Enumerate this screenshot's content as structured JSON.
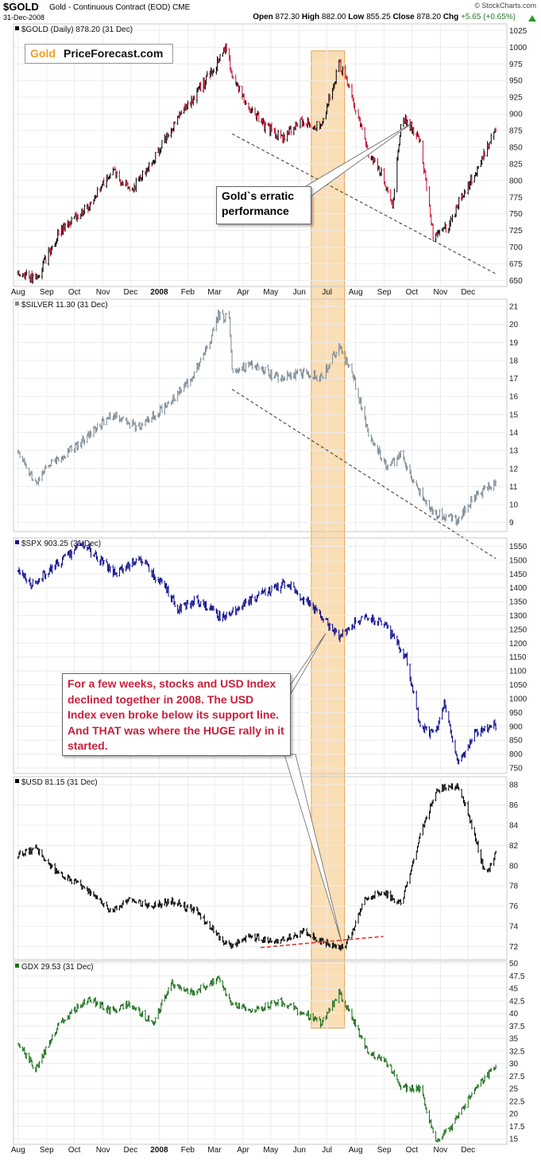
{
  "header": {
    "symbol": "$GOLD",
    "name": "Gold - Continuous Contract (EOD)",
    "exchange": "CME",
    "date": "31-Dec-2008",
    "credit": "© StockCharts.com",
    "open_label": "Open",
    "open": "872.30",
    "high_label": "High",
    "high": "882.00",
    "low_label": "Low",
    "low": "855.25",
    "close_label": "Close",
    "close": "878.20",
    "chg_label": "Chg",
    "chg": "+5.65 (+0.65%)"
  },
  "logo": {
    "gold": "Gold",
    "rest": "PriceForecast.com"
  },
  "annotations": {
    "gold": "Gold`s erratic performance",
    "usd": "For a few weeks, stocks and USD Index declined together in 2008. The USD Index even broke below its support line. And THAT was where the HUGE rally in it started."
  },
  "colors": {
    "gold_up": "#000000",
    "gold_down": "#c8102e",
    "silver": "#7a8a96",
    "spx": "#0a0a8c",
    "usd": "#000000",
    "gdx": "#1a6e1a",
    "highlight_fill": "#f5c27a",
    "highlight_stroke": "#e8a040",
    "support_line": "#dd3333"
  },
  "chart_data": [
    {
      "type": "line",
      "style": "ohlc",
      "label": "$GOLD (Daily) 878.20 (31 Dec)",
      "yticks": [
        650,
        675,
        700,
        725,
        750,
        775,
        800,
        825,
        850,
        875,
        900,
        925,
        950,
        975,
        1000,
        1025
      ],
      "ylim": [
        641,
        1035
      ],
      "x": [
        "2007-08-01",
        "2007-08-20",
        "2007-09-15",
        "2007-10-15",
        "2007-11-10",
        "2007-12-01",
        "2007-12-25",
        "2008-01-15",
        "2008-02-05",
        "2008-02-25",
        "2008-03-14",
        "2008-03-20",
        "2008-04-05",
        "2008-04-25",
        "2008-05-15",
        "2008-06-05",
        "2008-06-25",
        "2008-07-14",
        "2008-07-25",
        "2008-08-15",
        "2008-08-30",
        "2008-09-10",
        "2008-09-20",
        "2008-10-10",
        "2008-10-24",
        "2008-11-10",
        "2008-11-25",
        "2008-12-10",
        "2008-12-31"
      ],
      "values": [
        665,
        650,
        725,
        760,
        815,
        785,
        830,
        880,
        920,
        960,
        1000,
        960,
        915,
        880,
        865,
        890,
        880,
        975,
        940,
        840,
        810,
        760,
        900,
        860,
        720,
        730,
        780,
        815,
        878
      ],
      "trendlines": [
        {
          "style": "dashed",
          "x": [
            "2008-03-20",
            "2008-12-31"
          ],
          "y": [
            870,
            660
          ]
        }
      ]
    },
    {
      "type": "line",
      "label": "$SILVER 11.30 (31 Dec)",
      "yticks": [
        9,
        10,
        11,
        12,
        13,
        14,
        15,
        16,
        17,
        18,
        19,
        20,
        21
      ],
      "ylim": [
        8.5,
        21.4
      ],
      "x": [
        "2007-08-01",
        "2007-08-20",
        "2007-09-05",
        "2007-10-10",
        "2007-11-10",
        "2007-12-10",
        "2008-01-10",
        "2008-02-05",
        "2008-02-25",
        "2008-03-05",
        "2008-03-17",
        "2008-03-20",
        "2008-04-10",
        "2008-05-10",
        "2008-06-05",
        "2008-06-25",
        "2008-07-14",
        "2008-07-30",
        "2008-08-15",
        "2008-09-05",
        "2008-09-20",
        "2008-10-05",
        "2008-10-25",
        "2008-11-20",
        "2008-12-10",
        "2008-12-31"
      ],
      "values": [
        13.0,
        11.2,
        12.2,
        13.5,
        15.0,
        14.3,
        15.5,
        17.0,
        19.0,
        20.5,
        20.3,
        17.5,
        17.8,
        17.0,
        17.3,
        17.0,
        18.8,
        17.0,
        14.0,
        12.0,
        12.8,
        11.0,
        9.5,
        9.2,
        10.5,
        11.3
      ],
      "trendlines": [
        {
          "style": "dashed",
          "x": [
            "2008-03-20",
            "2008-12-31"
          ],
          "y": [
            16.4,
            7.0
          ]
        }
      ]
    },
    {
      "type": "line",
      "label": "$SPX 903.25 (31 Dec)",
      "yticks": [
        750,
        800,
        850,
        900,
        950,
        1000,
        1050,
        1100,
        1150,
        1200,
        1250,
        1300,
        1350,
        1400,
        1450,
        1500,
        1550
      ],
      "ylim": [
        730,
        1580
      ],
      "x": [
        "2007-08-01",
        "2007-08-15",
        "2007-09-10",
        "2007-10-09",
        "2007-11-15",
        "2007-12-10",
        "2008-01-10",
        "2008-01-22",
        "2008-02-10",
        "2008-03-10",
        "2008-04-10",
        "2008-05-19",
        "2008-06-15",
        "2008-07-15",
        "2008-07-28",
        "2008-08-15",
        "2008-09-01",
        "2008-09-25",
        "2008-10-10",
        "2008-10-25",
        "2008-11-05",
        "2008-11-20",
        "2008-12-10",
        "2008-12-31"
      ],
      "values": [
        1460,
        1410,
        1480,
        1560,
        1450,
        1510,
        1390,
        1320,
        1360,
        1290,
        1360,
        1420,
        1330,
        1220,
        1270,
        1290,
        1270,
        1150,
        900,
        870,
        980,
        760,
        880,
        903
      ]
    },
    {
      "type": "line",
      "label": "$USD 81.15 (31 Dec)",
      "yticks": [
        72,
        74,
        76,
        78,
        80,
        82,
        84,
        86,
        88
      ],
      "ylim": [
        70.7,
        88.8
      ],
      "x": [
        "2007-08-01",
        "2007-08-20",
        "2007-09-10",
        "2007-10-10",
        "2007-11-10",
        "2007-12-01",
        "2007-12-20",
        "2008-01-15",
        "2008-02-10",
        "2008-03-15",
        "2008-04-10",
        "2008-05-10",
        "2008-06-05",
        "2008-06-30",
        "2008-07-15",
        "2008-07-22",
        "2008-08-10",
        "2008-08-30",
        "2008-09-20",
        "2008-10-10",
        "2008-10-28",
        "2008-11-20",
        "2008-12-05",
        "2008-12-20",
        "2008-12-31"
      ],
      "values": [
        81.0,
        81.8,
        79.5,
        78.0,
        75.5,
        76.8,
        76.0,
        76.5,
        75.5,
        72.0,
        73.0,
        72.5,
        73.5,
        72.3,
        72.0,
        72.2,
        76.5,
        77.5,
        76.2,
        83.0,
        87.5,
        88.0,
        84.0,
        79.0,
        81.15
      ],
      "trendlines": [
        {
          "style": "dashed",
          "x": [
            "2008-04-20",
            "2008-08-31"
          ],
          "y": [
            71.9,
            73.0
          ]
        }
      ]
    },
    {
      "type": "line",
      "label": "GDX 29.53 (31 Dec)",
      "yticks": [
        15.0,
        17.5,
        20.0,
        22.5,
        25.0,
        27.5,
        30.0,
        32.5,
        35.0,
        37.5,
        40.0,
        42.5,
        45.0,
        47.5,
        50.0
      ],
      "ylim": [
        13.9,
        50.4
      ],
      "x": [
        "2007-08-01",
        "2007-08-20",
        "2007-09-15",
        "2007-10-15",
        "2007-11-10",
        "2007-12-01",
        "2007-12-25",
        "2008-01-15",
        "2008-02-05",
        "2008-03-05",
        "2008-03-20",
        "2008-04-10",
        "2008-05-10",
        "2008-06-05",
        "2008-06-25",
        "2008-07-14",
        "2008-07-25",
        "2008-08-15",
        "2008-09-05",
        "2008-09-20",
        "2008-10-10",
        "2008-10-27",
        "2008-11-15",
        "2008-12-05",
        "2008-12-31"
      ],
      "values": [
        34.0,
        29.0,
        38.0,
        43.0,
        40.5,
        42.0,
        38.0,
        46.0,
        44.0,
        47.0,
        42.0,
        40.5,
        42.5,
        40.0,
        38.0,
        44.0,
        40.5,
        32.0,
        30.0,
        25.0,
        25.0,
        14.5,
        18.0,
        24.0,
        29.53
      ]
    }
  ],
  "x_axis": {
    "ticks": [
      "Aug",
      "Sep",
      "Oct",
      "Nov",
      "Dec",
      "2008",
      "Feb",
      "Mar",
      "Apr",
      "May",
      "Jun",
      "Jul",
      "Aug",
      "Sep",
      "Oct",
      "Nov",
      "Dec"
    ],
    "dates": [
      "2007-08-01",
      "2007-09-01",
      "2007-10-01",
      "2007-11-01",
      "2007-12-01",
      "2008-01-01",
      "2008-02-01",
      "2008-03-01",
      "2008-04-01",
      "2008-05-01",
      "2008-06-01",
      "2008-07-01",
      "2008-08-01",
      "2008-09-01",
      "2008-10-01",
      "2008-11-01",
      "2008-12-01"
    ],
    "range": [
      "2007-07-27",
      "2009-01-12"
    ]
  },
  "highlight": {
    "x": [
      "2008-06-14",
      "2008-07-20"
    ]
  }
}
